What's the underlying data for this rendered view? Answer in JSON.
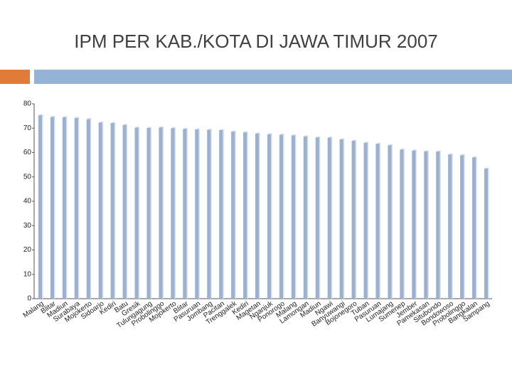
{
  "chart_data": {
    "type": "bar",
    "title": "IPM PER KAB./KOTA DI JAWA TIMUR 2007",
    "categories": [
      "Malang",
      "Blitar",
      "Madiun",
      "Surabaya",
      "Mojokerto",
      "Sidoarjo",
      "Kediri",
      "Batu",
      "Gresik",
      "Tulungagung",
      "Probolinggo",
      "Mojokerto",
      "Blitar",
      "Pasuruan",
      "Jombang",
      "Pacitan",
      "Trenggalek",
      "Kediri",
      "Magetan",
      "Nganjuk",
      "Ponorogo",
      "Malang",
      "Lamongan",
      "Madiun",
      "Ngawi",
      "Banyuwangi",
      "Bojonegoro",
      "Tuban",
      "Pasuruan",
      "Lumajang",
      "Sumenep",
      "Jember",
      "Pamekasan",
      "Situbondo",
      "Bondowoso",
      "Probolinggo",
      "Bangkalan",
      "Sampang"
    ],
    "values": [
      75.3,
      74.6,
      74.5,
      74.2,
      73.7,
      72.3,
      72.1,
      71.3,
      70.2,
      70.1,
      70.3,
      70.0,
      69.7,
      69.5,
      69.3,
      69.2,
      68.6,
      68.3,
      67.8,
      67.5,
      67.3,
      67.0,
      66.6,
      66.2,
      66.1,
      65.4,
      64.8,
      64.0,
      63.6,
      63.0,
      61.2,
      60.8,
      60.5,
      60.4,
      59.2,
      58.9,
      58.0,
      53.4
    ],
    "color": "#9bb1d2",
    "ylim": [
      0,
      80
    ],
    "yticks": [
      0,
      10,
      20,
      30,
      40,
      50,
      60,
      70,
      80
    ],
    "grid": false
  }
}
